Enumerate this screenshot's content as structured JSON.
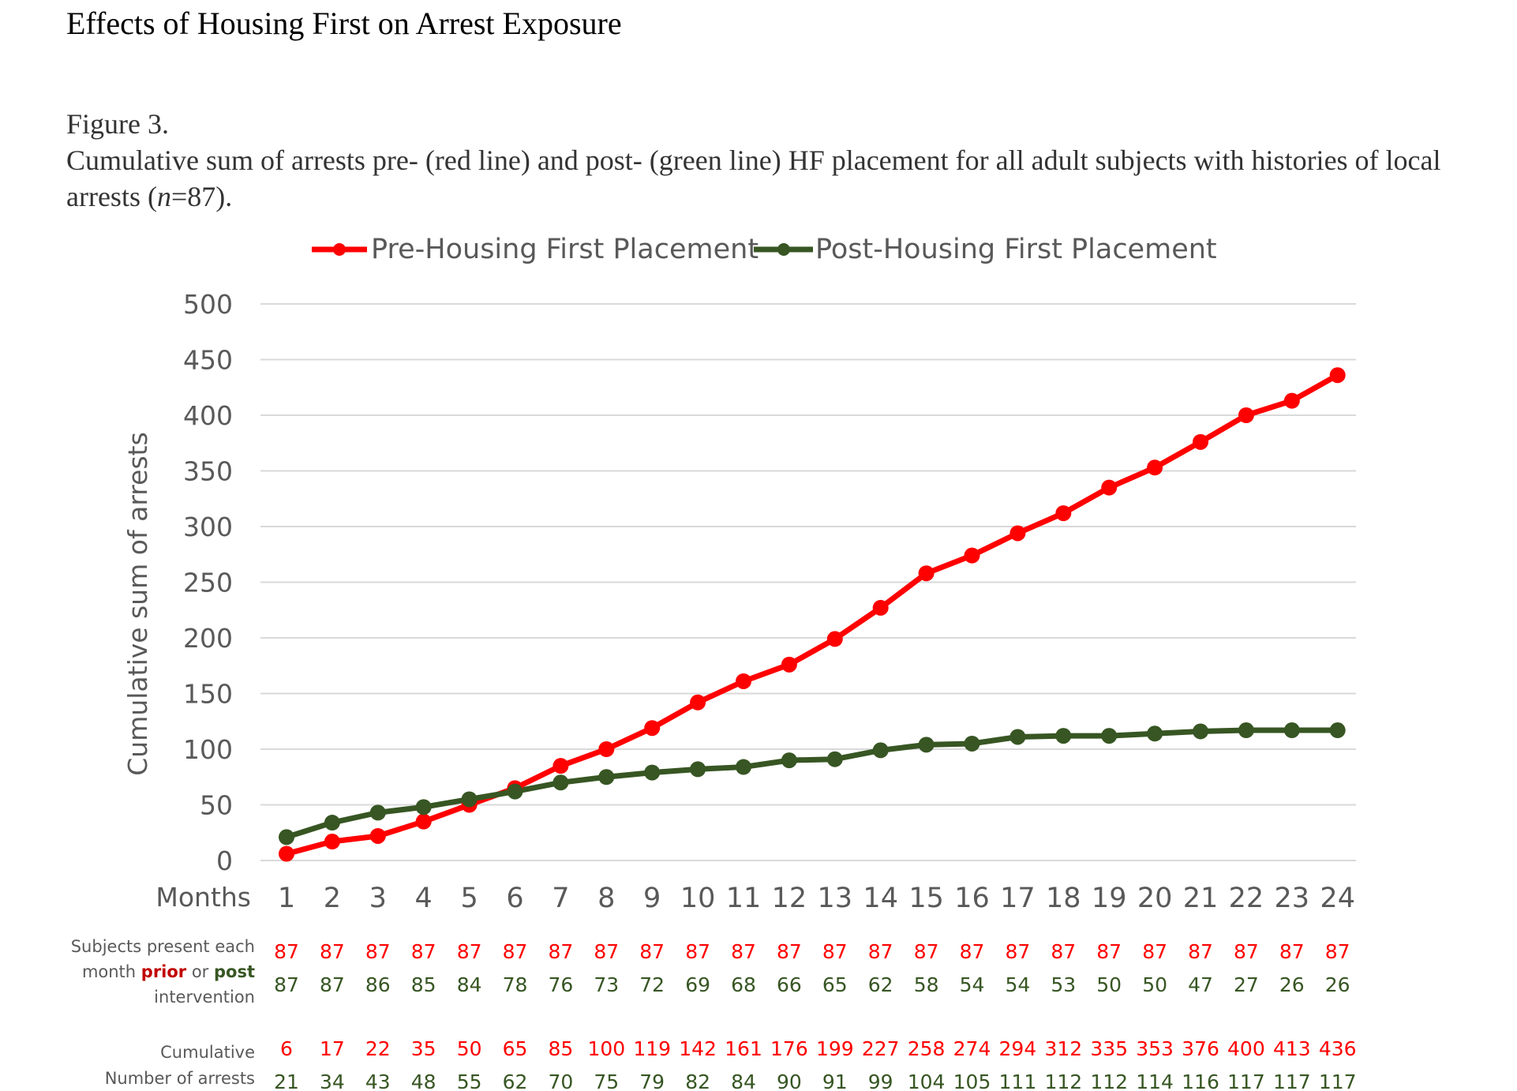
{
  "document": {
    "title": "Effects of Housing First on Arrest Exposure",
    "figure_label": "Figure 3.",
    "caption_text": "Cumulative sum of arrests pre- (red line) and post- (green line) HF placement for all adult subjects with histories of local arrests (",
    "caption_n": "n",
    "caption_end": "=87)."
  },
  "chart_data": {
    "type": "line",
    "xlabel": "Months",
    "ylabel": "Cumulative sum of arrests",
    "x": [
      1,
      2,
      3,
      4,
      5,
      6,
      7,
      8,
      9,
      10,
      11,
      12,
      13,
      14,
      15,
      16,
      17,
      18,
      19,
      20,
      21,
      22,
      23,
      24
    ],
    "ylim": [
      0,
      500
    ],
    "yticks": [
      0,
      50,
      100,
      150,
      200,
      250,
      300,
      350,
      400,
      450,
      500
    ],
    "grid": true,
    "legend_position": "top",
    "series": [
      {
        "name": "Pre-Housing First Placement",
        "color": "#ff0000",
        "values": [
          6,
          17,
          22,
          35,
          50,
          65,
          85,
          100,
          119,
          142,
          161,
          176,
          199,
          227,
          258,
          274,
          294,
          312,
          335,
          353,
          376,
          400,
          413,
          436
        ]
      },
      {
        "name": "Post-Housing First Placement",
        "color": "#375623",
        "values": [
          21,
          34,
          43,
          48,
          55,
          62,
          70,
          75,
          79,
          82,
          84,
          90,
          91,
          99,
          104,
          105,
          111,
          112,
          112,
          114,
          116,
          117,
          117,
          117
        ]
      }
    ],
    "subjects_table": {
      "label_line1": "Subjects present each",
      "label_line2_pre": "month ",
      "label_prior": "prior",
      "label_or": " or ",
      "label_post": "post",
      "label_line3": "intervention",
      "prior": [
        87,
        87,
        87,
        87,
        87,
        87,
        87,
        87,
        87,
        87,
        87,
        87,
        87,
        87,
        87,
        87,
        87,
        87,
        87,
        87,
        87,
        87,
        87,
        87
      ],
      "post": [
        87,
        87,
        86,
        85,
        84,
        78,
        76,
        73,
        72,
        69,
        68,
        66,
        65,
        62,
        58,
        54,
        54,
        53,
        50,
        50,
        47,
        27,
        26,
        26
      ]
    },
    "cumulative_table": {
      "label_line1": "Cumulative",
      "label_line2": "Number of arrests",
      "pre": [
        6,
        17,
        22,
        35,
        50,
        65,
        85,
        100,
        119,
        142,
        161,
        176,
        199,
        227,
        258,
        274,
        294,
        312,
        335,
        353,
        376,
        400,
        413,
        436
      ],
      "post": [
        21,
        34,
        43,
        48,
        55,
        62,
        70,
        75,
        79,
        82,
        84,
        90,
        91,
        99,
        104,
        105,
        111,
        112,
        112,
        114,
        116,
        117,
        117,
        117
      ]
    }
  }
}
